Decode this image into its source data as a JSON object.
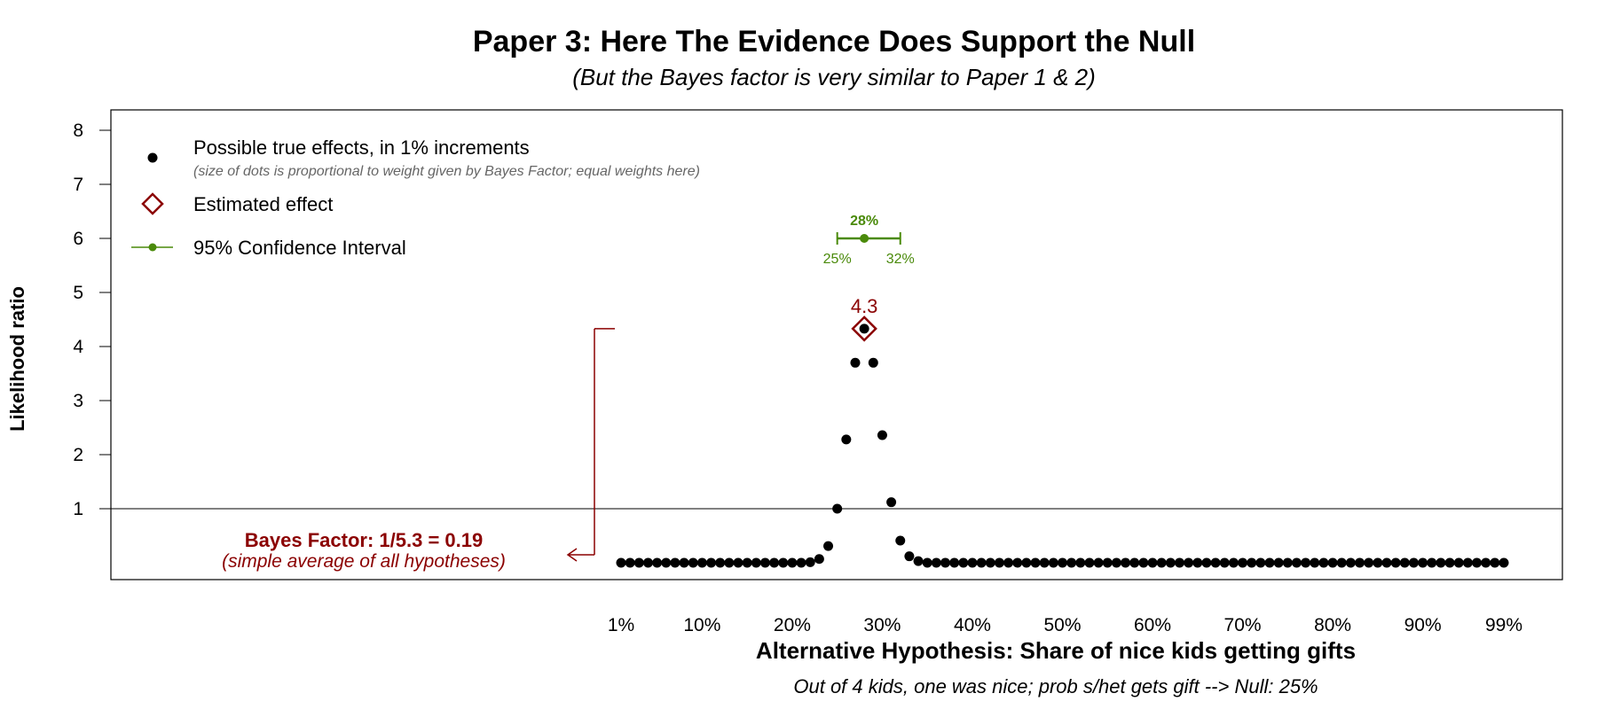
{
  "chart_data": {
    "type": "scatter",
    "title": "Paper 3: Here The Evidence Does Support the Null",
    "subtitle": "(But the Bayes factor is very similar to Paper 1 & 2)",
    "xlabel": "Alternative Hypothesis: Share of nice kids getting gifts",
    "x_note": "Out of 4 kids, one was nice; prob s/het gets gift --> Null: 25%",
    "ylabel": "Likelihood ratio",
    "xlim": [
      1,
      99
    ],
    "ylim": [
      0,
      8
    ],
    "x_tick_values": [
      1,
      10,
      20,
      30,
      40,
      50,
      60,
      70,
      80,
      90,
      99
    ],
    "x_tick_labels": [
      "1%",
      "10%",
      "20%",
      "30%",
      "40%",
      "50%",
      "60%",
      "70%",
      "80%",
      "90%",
      "99%"
    ],
    "y_tick_values": [
      1,
      2,
      3,
      4,
      5,
      6,
      7,
      8
    ],
    "y_tick_labels": [
      "1",
      "2",
      "3",
      "4",
      "5",
      "6",
      "7",
      "8"
    ],
    "reference_line_y": 1,
    "series": [
      {
        "name": "Possible true effects, in 1% increments",
        "color": "#000000",
        "x": [
          1,
          2,
          3,
          4,
          5,
          6,
          7,
          8,
          9,
          10,
          11,
          12,
          13,
          14,
          15,
          16,
          17,
          18,
          19,
          20,
          21,
          22,
          23,
          24,
          25,
          26,
          27,
          28,
          29,
          30,
          31,
          32,
          33,
          34,
          35,
          36,
          37,
          38,
          39,
          40,
          41,
          42,
          43,
          44,
          45,
          46,
          47,
          48,
          49,
          50,
          51,
          52,
          53,
          54,
          55,
          56,
          57,
          58,
          59,
          60,
          61,
          62,
          63,
          64,
          65,
          66,
          67,
          68,
          69,
          70,
          71,
          72,
          73,
          74,
          75,
          76,
          77,
          78,
          79,
          80,
          81,
          82,
          83,
          84,
          85,
          86,
          87,
          88,
          89,
          90,
          91,
          92,
          93,
          94,
          95,
          96,
          97,
          98,
          99
        ],
        "y": [
          0,
          0,
          0,
          0,
          0,
          0,
          0,
          0,
          0,
          0,
          0,
          0,
          0,
          0,
          0,
          0,
          0,
          0,
          0,
          0,
          0,
          0.01,
          0.07,
          0.31,
          1.0,
          2.28,
          3.7,
          4.33,
          3.7,
          2.36,
          1.12,
          0.41,
          0.12,
          0.03,
          0,
          0,
          0,
          0,
          0,
          0,
          0,
          0,
          0,
          0,
          0,
          0,
          0,
          0,
          0,
          0,
          0,
          0,
          0,
          0,
          0,
          0,
          0,
          0,
          0,
          0,
          0,
          0,
          0,
          0,
          0,
          0,
          0,
          0,
          0,
          0,
          0,
          0,
          0,
          0,
          0,
          0,
          0,
          0,
          0,
          0,
          0,
          0,
          0,
          0,
          0,
          0,
          0,
          0,
          0,
          0,
          0,
          0,
          0,
          0,
          0,
          0,
          0,
          0,
          0
        ]
      }
    ],
    "estimate": {
      "x": 28,
      "y": 4.33,
      "label": "4.3",
      "color": "#8b0000"
    },
    "confidence_interval": {
      "point": 28,
      "lower": 25,
      "upper": 32,
      "y": 6,
      "point_label": "28%",
      "lower_label": "25%",
      "upper_label": "32%",
      "color": "#4a8a0a"
    },
    "legend": {
      "placement": "top-left",
      "dots_label": "Possible true effects, in 1% increments",
      "dots_note": "(size of dots is proportional to weight given by Bayes Factor; equal weights here)",
      "estimate_label": "Estimated effect",
      "ci_label": "95% Confidence Interval"
    },
    "bayes_factor": {
      "title": "Bayes Factor: 1/5.3 = 0.19",
      "note": "(simple average of all hypotheses)",
      "color": "#8b0000"
    },
    "grid": false
  }
}
